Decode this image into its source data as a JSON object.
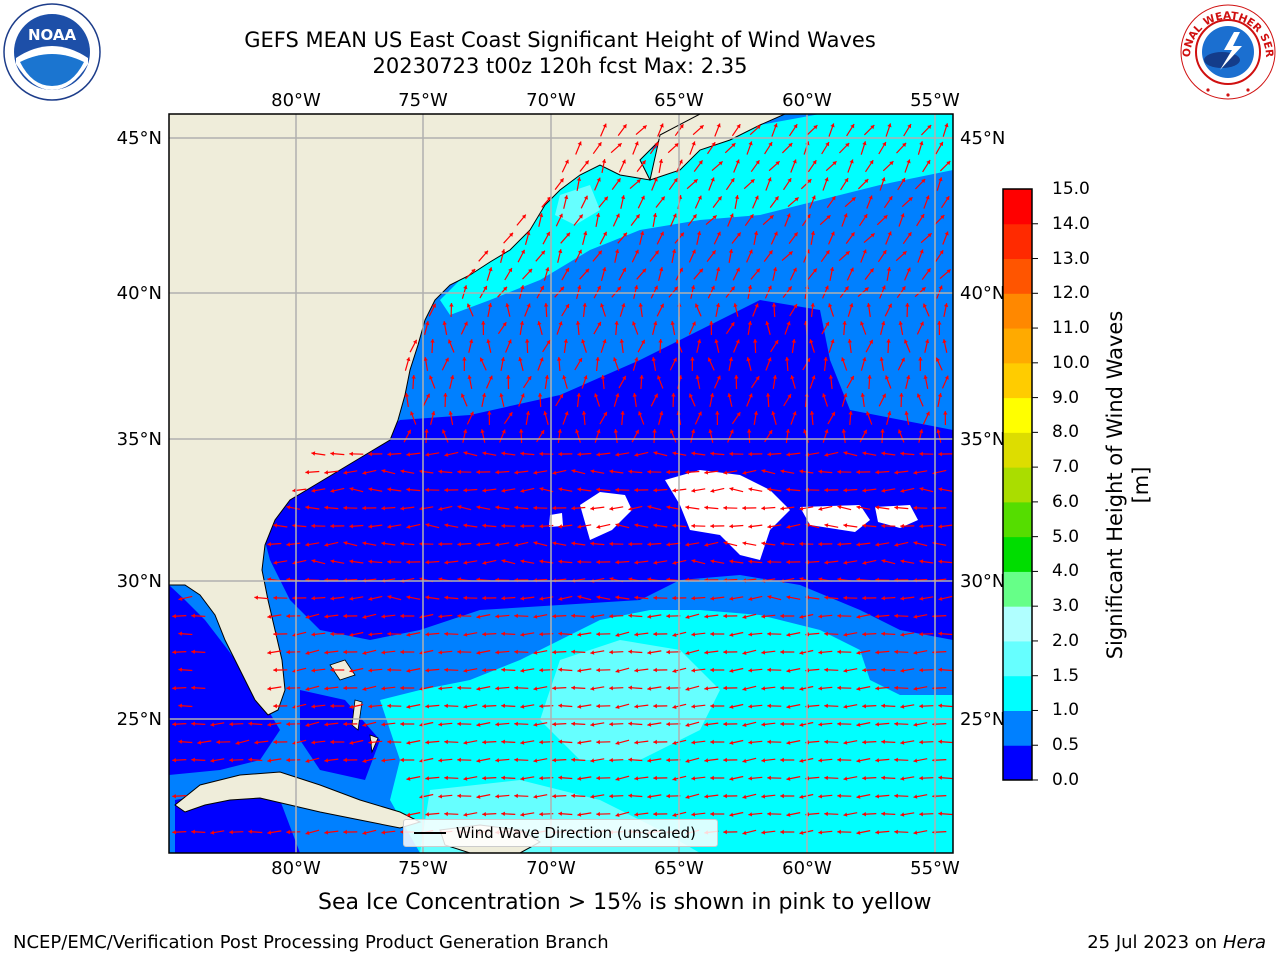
{
  "title_line1": "GEFS MEAN US East Coast Significant Height of Wind Waves",
  "title_line2": "20230723 t00z 120h fcst   Max: 2.35",
  "caption": "Sea Ice Concentration > 15% is shown in pink to yellow",
  "footer_left": "NCEP/EMC/Verification Post Processing Product Generation Branch",
  "footer_date": "25 Jul 2023 on ",
  "footer_machine": "Hera",
  "legend_label": "Wind Wave Direction (unscaled)",
  "colorbar": {
    "title": "Significant Height of Wind Waves [m]",
    "ticks": [
      "0.0",
      "0.5",
      "1.0",
      "1.5",
      "2.0",
      "3.0",
      "4.0",
      "5.0",
      "6.0",
      "7.0",
      "8.0",
      "9.0",
      "10.0",
      "11.0",
      "12.0",
      "13.0",
      "14.0",
      "15.0"
    ],
    "colors": [
      "#0000ff",
      "#0080ff",
      "#00ffff",
      "#66ffff",
      "#b0ffff",
      "#66ff88",
      "#00dd00",
      "#55dd00",
      "#aadd00",
      "#dddd00",
      "#ffff00",
      "#ffcc00",
      "#ffaa00",
      "#ff8800",
      "#ff5500",
      "#ff2a00",
      "#ff0000"
    ]
  },
  "axes": {
    "lon_ticks": [
      "80°W",
      "75°W",
      "70°W",
      "65°W",
      "60°W",
      "55°W"
    ],
    "lat_ticks": [
      "45°N",
      "40°N",
      "35°N",
      "30°N",
      "25°N"
    ]
  },
  "logos": {
    "noaa_text": "NOAA",
    "nws_text": "NATIONAL WEATHER SERVICE"
  },
  "colors": {
    "land": "#efedda",
    "arrows": "#ff0000",
    "grid": "#b0b0b0"
  }
}
